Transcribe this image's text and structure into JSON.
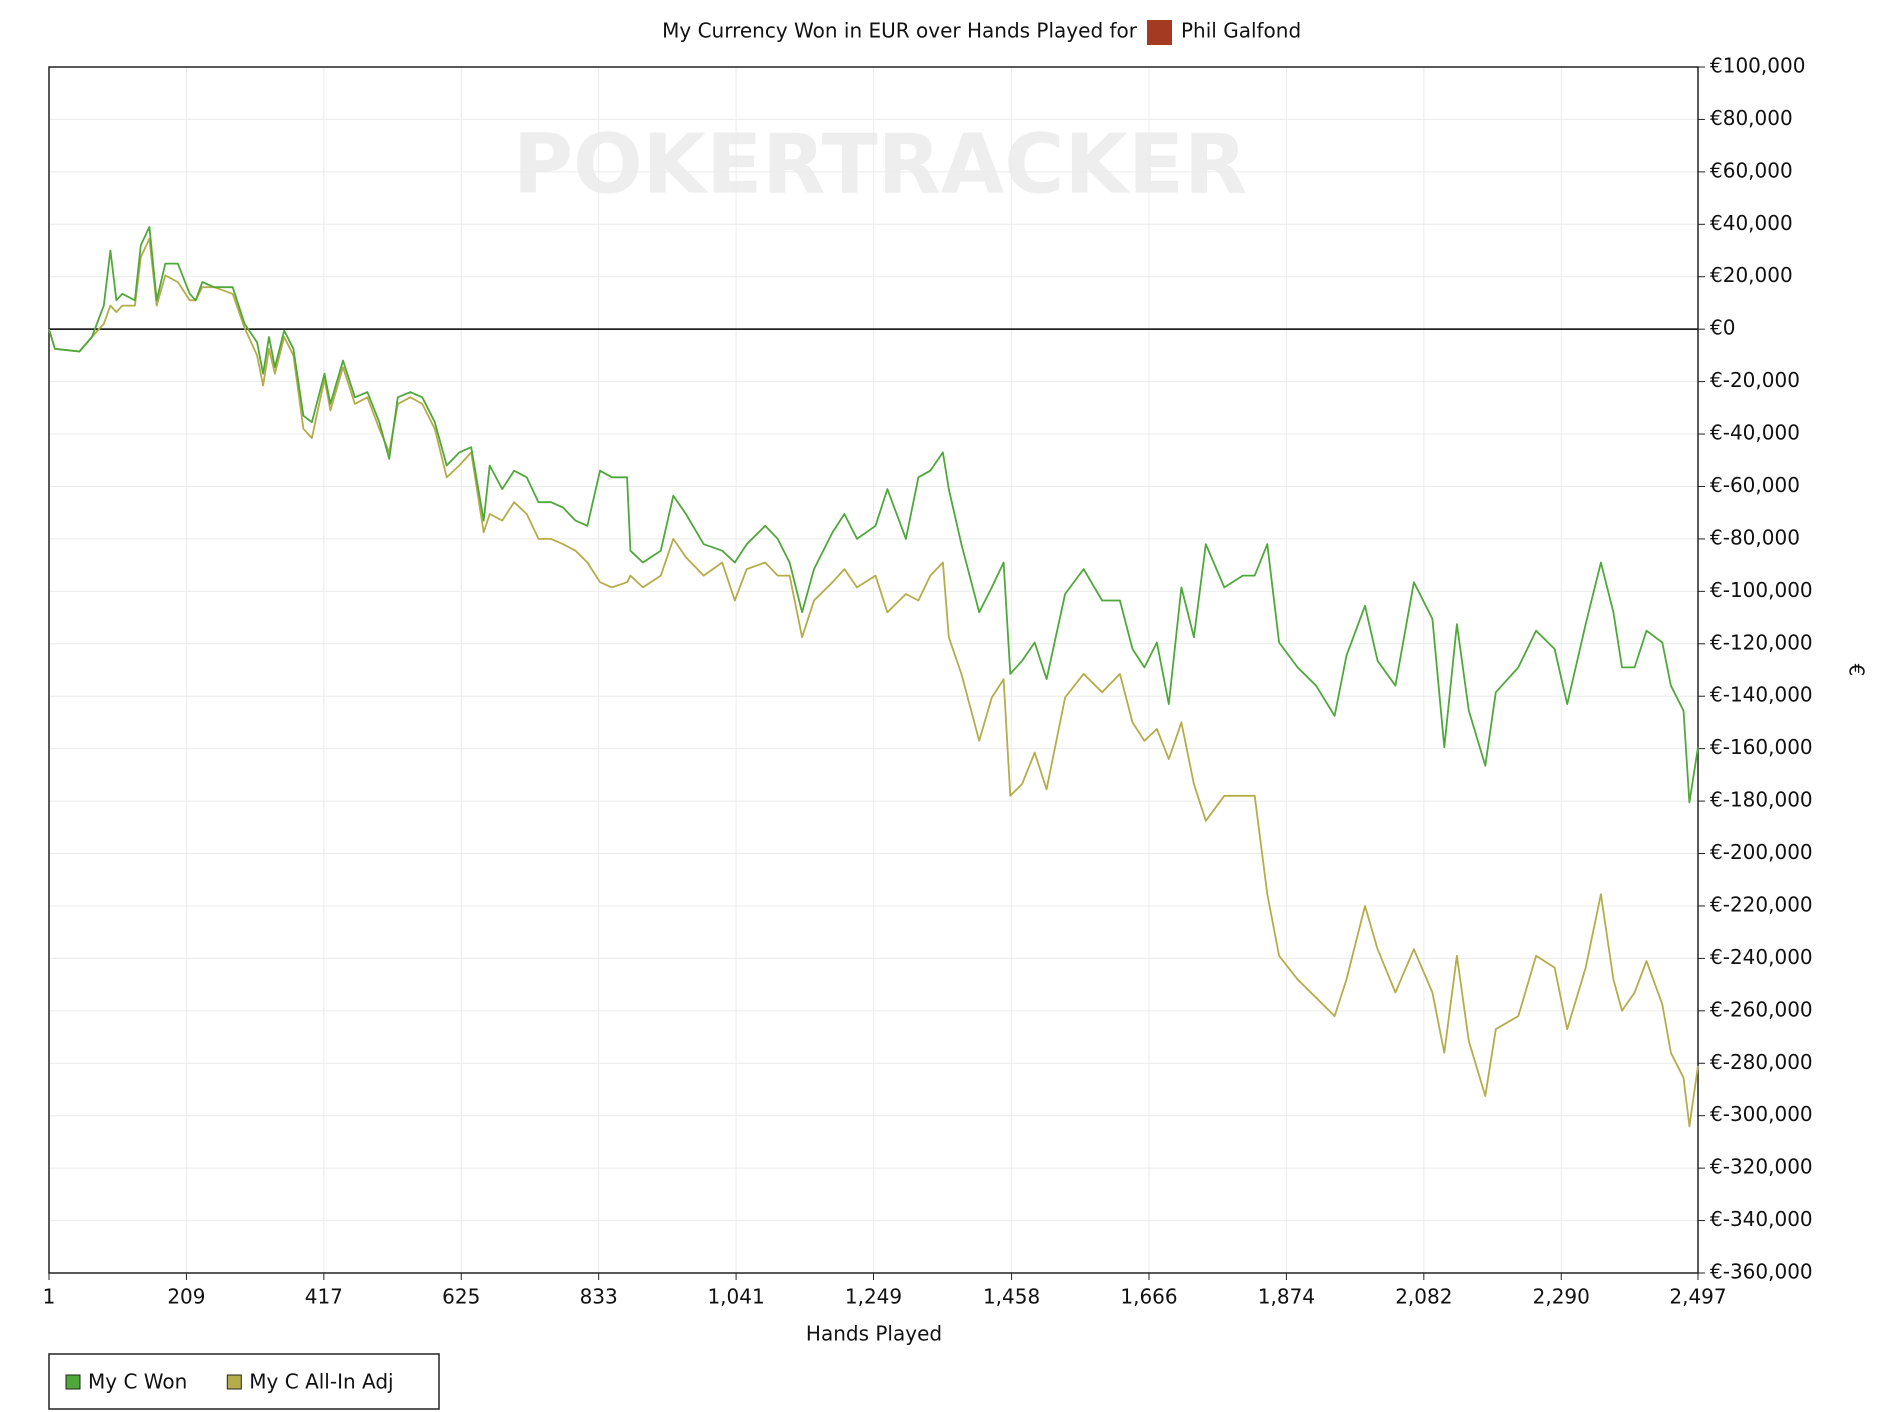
{
  "chart_data": {
    "type": "line",
    "title": "My Currency Won in EUR over Hands Played for",
    "player": "Phil Galfond",
    "watermark": "POKERTRACKER",
    "x_label": "Hands Played",
    "y_label": "€",
    "grid": true,
    "legend": "bottom-left",
    "xlim": [
      1,
      2497
    ],
    "ylim": [
      -360000,
      100000
    ],
    "xticks": [
      1,
      209,
      417,
      625,
      833,
      {
        "value": 1041,
        "label": "1,041"
      },
      {
        "value": 1249,
        "label": "1,249"
      },
      {
        "value": 1458,
        "label": "1,458"
      },
      {
        "value": 1666,
        "label": "1,666"
      },
      {
        "value": 1874,
        "label": "1,874"
      },
      {
        "value": 2082,
        "label": "2,082"
      },
      {
        "value": 2290,
        "label": "2,290"
      },
      {
        "value": 2497,
        "label": "2,497"
      }
    ],
    "yticks": [
      {
        "value": 100000,
        "label": "€100,000"
      },
      {
        "value": 80000,
        "label": "€80,000"
      },
      {
        "value": 60000,
        "label": "€60,000"
      },
      {
        "value": 40000,
        "label": "€40,000"
      },
      {
        "value": 20000,
        "label": "€20,000"
      },
      {
        "value": 0,
        "label": "€0"
      },
      {
        "value": -20000,
        "label": "€-20,000"
      },
      {
        "value": -40000,
        "label": "€-40,000"
      },
      {
        "value": -60000,
        "label": "€-60,000"
      },
      {
        "value": -80000,
        "label": "€-80,000"
      },
      {
        "value": -100000,
        "label": "€-100,000"
      },
      {
        "value": -120000,
        "label": "€-120,000"
      },
      {
        "value": -140000,
        "label": "€-140,000"
      },
      {
        "value": -160000,
        "label": "€-160,000"
      },
      {
        "value": -180000,
        "label": "€-180,000"
      },
      {
        "value": -200000,
        "label": "€-200,000"
      },
      {
        "value": -220000,
        "label": "€-220,000"
      },
      {
        "value": -240000,
        "label": "€-240,000"
      },
      {
        "value": -260000,
        "label": "€-260,000"
      },
      {
        "value": -280000,
        "label": "€-280,000"
      },
      {
        "value": -300000,
        "label": "€-300,000"
      },
      {
        "value": -320000,
        "label": "€-320,000"
      },
      {
        "value": -340000,
        "label": "€-340,000"
      },
      {
        "value": -360000,
        "label": "€-360,000"
      }
    ],
    "x": [
      1,
      10,
      47,
      66,
      84,
      94,
      103,
      112,
      131,
      140,
      153,
      164,
      177,
      196,
      214,
      223,
      233,
      251,
      279,
      297,
      316,
      325,
      334,
      343,
      357,
      371,
      386,
      399,
      418,
      427,
      446,
      464,
      483,
      501,
      516,
      529,
      548,
      566,
      585,
      603,
      622,
      640,
      659,
      668,
      687,
      705,
      724,
      742,
      761,
      779,
      798,
      816,
      835,
      853,
      876,
      881,
      900,
      927,
      946,
      965,
      992,
      1020,
      1039,
      1057,
      1085,
      1104,
      1122,
      1141,
      1159,
      1187,
      1205,
      1224,
      1252,
      1270,
      1298,
      1317,
      1335,
      1354,
      1363,
      1382,
      1409,
      1428,
      1446,
      1456,
      1474,
      1493,
      1511,
      1539,
      1567,
      1595,
      1622,
      1641,
      1659,
      1678,
      1696,
      1715,
      1734,
      1752,
      1780,
      1808,
      1826,
      1845,
      1863,
      1891,
      1919,
      1947,
      1965,
      1993,
      2012,
      2039,
      2067,
      2095,
      2113,
      2132,
      2150,
      2175,
      2191,
      2225,
      2252,
      2280,
      2299,
      2327,
      2350,
      2369,
      2382,
      2401,
      2419,
      2443,
      2456,
      2475,
      2484,
      2497
    ],
    "series": [
      {
        "name": "My C Won",
        "color": "#4fa83a",
        "values": [
          0,
          -7500,
          -8500,
          -3000,
          9000,
          30000,
          11000,
          13500,
          11000,
          32000,
          39000,
          11000,
          25000,
          25000,
          13500,
          11000,
          18000,
          16000,
          16000,
          2000,
          -5000,
          -17000,
          -3000,
          -14500,
          -500,
          -7500,
          -33000,
          -35500,
          -17000,
          -28500,
          -12000,
          -26000,
          -24000,
          -35500,
          -49500,
          -26000,
          -24000,
          -26000,
          -35500,
          -52000,
          -47000,
          -45000,
          -73000,
          -52000,
          -61000,
          -54000,
          -56500,
          -66000,
          -66000,
          -68000,
          -73000,
          -75000,
          -54000,
          -56500,
          -56500,
          -84500,
          -89000,
          -84500,
          -63500,
          -70500,
          -82000,
          -84500,
          -89000,
          -82000,
          -75000,
          -80000,
          -89000,
          -108000,
          -91500,
          -77500,
          -70500,
          -80000,
          -75000,
          -61000,
          -80000,
          -56500,
          -54000,
          -47000,
          -61000,
          -82000,
          -108000,
          -98500,
          -89000,
          -131500,
          -126500,
          -119500,
          -133500,
          -101000,
          -91500,
          -103500,
          -103500,
          -122000,
          -129000,
          -119500,
          -143000,
          -98500,
          -117500,
          -82000,
          -98500,
          -94000,
          -94000,
          -82000,
          -119500,
          -129000,
          -136000,
          -147500,
          -124500,
          -105500,
          -126500,
          -136000,
          -96500,
          -110500,
          -159500,
          -112500,
          -145500,
          -166500,
          -138500,
          -129000,
          -115000,
          -122000,
          -143000,
          -112500,
          -89000,
          -108000,
          -129000,
          -129000,
          -115000,
          -119500,
          -136000,
          -145500,
          -180500,
          -159500
        ]
      },
      {
        "name": "My C All-In Adj",
        "color": "#b5ac4a",
        "values": [
          0,
          -7500,
          -8500,
          -3000,
          2000,
          9000,
          6500,
          9000,
          9000,
          27500,
          34500,
          9000,
          20500,
          18000,
          11000,
          11000,
          16000,
          16000,
          13500,
          500,
          -10000,
          -21500,
          -7500,
          -17000,
          -3000,
          -10000,
          -38000,
          -41500,
          -19000,
          -31000,
          -14500,
          -28500,
          -26000,
          -38000,
          -47000,
          -28500,
          -26000,
          -28500,
          -38000,
          -56500,
          -52000,
          -47000,
          -77500,
          -70500,
          -73000,
          -66000,
          -70500,
          -80000,
          -80000,
          -82000,
          -84500,
          -89000,
          -96500,
          -98500,
          -96500,
          -94000,
          -98500,
          -94000,
          -80000,
          -87000,
          -94000,
          -89000,
          -103500,
          -91500,
          -89000,
          -94000,
          -94000,
          -117500,
          -103500,
          -96500,
          -91500,
          -98500,
          -94000,
          -108000,
          -101000,
          -103500,
          -94000,
          -89000,
          -117500,
          -131500,
          -157000,
          -140500,
          -133500,
          -178000,
          -173500,
          -161500,
          -175500,
          -140500,
          -131500,
          -138500,
          -131500,
          -150000,
          -157000,
          -152500,
          -164000,
          -150000,
          -173500,
          -187500,
          -178000,
          -178000,
          -178000,
          -215500,
          -239000,
          -248000,
          -255000,
          -262000,
          -248000,
          -220000,
          -236500,
          -253000,
          -236500,
          -253000,
          -276000,
          -239000,
          -271500,
          -292500,
          -267000,
          -262000,
          -239000,
          -243500,
          -267000,
          -243500,
          -215500,
          -248000,
          -260000,
          -253000,
          -241000,
          -257500,
          -276000,
          -285500,
          -304000,
          -281000
        ]
      }
    ]
  }
}
